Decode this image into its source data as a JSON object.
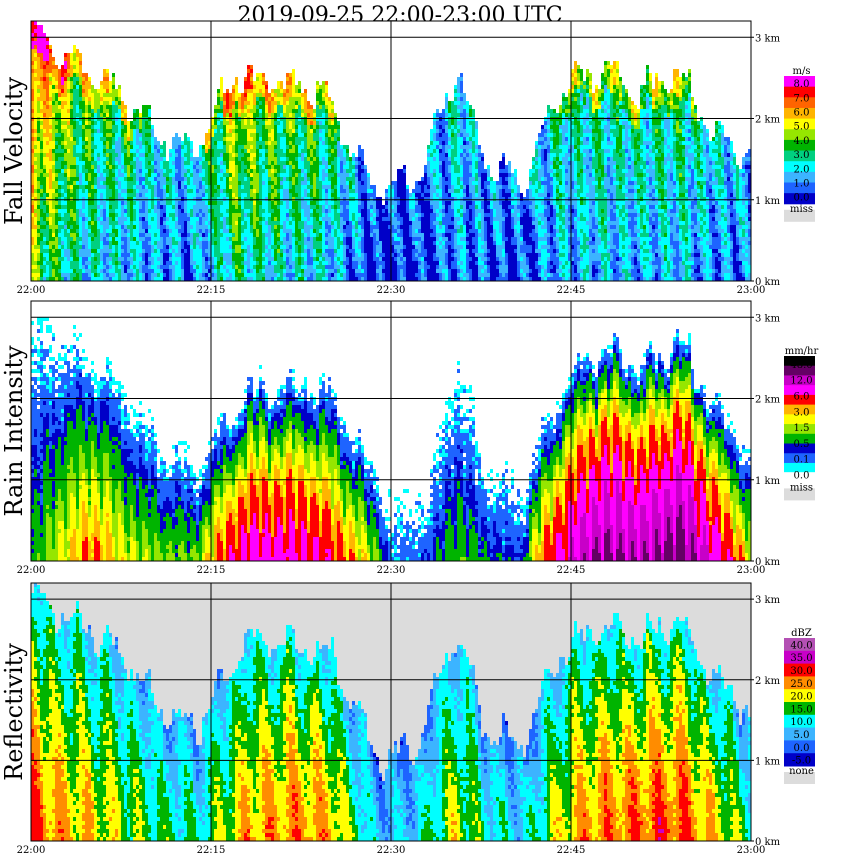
{
  "chart_data": [
    {
      "type": "heatmap",
      "title": "2019-09-25   22:00-23:00 UTC",
      "ylabel": "Fall Velocity",
      "xlabel": "",
      "x_ticks": [
        "22:00",
        "22:15",
        "22:30",
        "22:45",
        "23:00"
      ],
      "xlim": [
        0,
        60
      ],
      "y_ticks": [
        "0 km",
        "1 km",
        "2 km",
        "3 km"
      ],
      "ylim": [
        0,
        3.2
      ],
      "grid": true,
      "legend_unit": "m/s",
      "legend_labels": [
        "8.0",
        "7.0",
        "6.0",
        "5.0",
        "4.0",
        "3.0",
        "2.0",
        "1.0",
        "0.0",
        "miss"
      ],
      "levels": [
        0,
        1,
        2,
        3,
        4,
        5,
        6,
        7,
        8
      ],
      "colors": [
        "#0000c8",
        "#1e64ff",
        "#3cb4ff",
        "#00ffff",
        "#00d080",
        "#00b400",
        "#96e600",
        "#ffff00",
        "#ffb400",
        "#ff6400",
        "#ff0000",
        "#ff00ff"
      ],
      "miss_color": "#dcdcdc",
      "columns": [
        {
          "t": 0.0,
          "top": 3.2,
          "peak": 7.5
        },
        {
          "t": 2.0,
          "top": 2.8,
          "peak": 5.5
        },
        {
          "t": 4.5,
          "top": 2.6,
          "peak": 4.2
        },
        {
          "t": 7.5,
          "top": 2.3,
          "peak": 3.6
        },
        {
          "t": 10.5,
          "top": 1.8,
          "peak": 2.6
        },
        {
          "t": 13.5,
          "top": 1.6,
          "peak": 2.2
        },
        {
          "t": 17.0,
          "top": 2.5,
          "peak": 5.2
        },
        {
          "t": 21.0,
          "top": 2.4,
          "peak": 4.2
        },
        {
          "t": 24.5,
          "top": 2.3,
          "peak": 3.8
        },
        {
          "t": 28.5,
          "top": 1.1,
          "peak": 1.0
        },
        {
          "t": 32.0,
          "top": 1.2,
          "peak": 1.0
        },
        {
          "t": 35.5,
          "top": 2.6,
          "peak": 2.6
        },
        {
          "t": 38.0,
          "top": 1.4,
          "peak": 1.6
        },
        {
          "t": 41.0,
          "top": 1.2,
          "peak": 1.4
        },
        {
          "t": 44.0,
          "top": 2.3,
          "peak": 3.0
        },
        {
          "t": 47.5,
          "top": 2.6,
          "peak": 3.3
        },
        {
          "t": 50.5,
          "top": 2.3,
          "peak": 3.0
        },
        {
          "t": 54.0,
          "top": 2.5,
          "peak": 3.5
        },
        {
          "t": 57.0,
          "top": 1.8,
          "peak": 2.4
        },
        {
          "t": 60.0,
          "top": 1.5,
          "peak": 2.0
        }
      ]
    },
    {
      "type": "heatmap",
      "title": "",
      "ylabel": "Rain Intensity",
      "xlabel": "",
      "x_ticks": [
        "22:00",
        "22:15",
        "22:30",
        "22:45",
        "23:00"
      ],
      "xlim": [
        0,
        60
      ],
      "y_ticks": [
        "0 km",
        "1 km",
        "2 km",
        "3 km"
      ],
      "ylim": [
        0,
        3.2
      ],
      "grid": true,
      "legend_unit": "mm/hr",
      "legend_labels": [
        "48.0",
        "12.0",
        "6.0",
        "3.0",
        "1.5",
        "0.5",
        "0.1",
        "0.0",
        "miss"
      ],
      "levels": [
        0,
        0.1,
        0.5,
        1.5,
        3,
        6,
        12,
        48
      ],
      "colors": [
        "#ffffff",
        "#00ffff",
        "#1e64ff",
        "#0000c8",
        "#00b400",
        "#96e600",
        "#ffff00",
        "#ffb400",
        "#ff0000",
        "#ff00ff",
        "#c800c8",
        "#640064",
        "#000000"
      ],
      "miss_color": "#dcdcdc",
      "columns": [
        {
          "t": 0.0,
          "top": 3.2,
          "peak": 0.5
        },
        {
          "t": 2.5,
          "top": 2.8,
          "peak": 1.5
        },
        {
          "t": 5.0,
          "top": 2.6,
          "peak": 3.0
        },
        {
          "t": 8.0,
          "top": 2.2,
          "peak": 1.5
        },
        {
          "t": 11.0,
          "top": 1.5,
          "peak": 1.0
        },
        {
          "t": 14.0,
          "top": 1.3,
          "peak": 1.0
        },
        {
          "t": 18.0,
          "top": 2.2,
          "peak": 6.0
        },
        {
          "t": 22.0,
          "top": 2.3,
          "peak": 6.0
        },
        {
          "t": 25.0,
          "top": 2.2,
          "peak": 4.0
        },
        {
          "t": 30.0,
          "top": 0.8,
          "peak": 0.1
        },
        {
          "t": 33.0,
          "top": 0.9,
          "peak": 0.3
        },
        {
          "t": 35.5,
          "top": 2.6,
          "peak": 0.8
        },
        {
          "t": 38.0,
          "top": 1.2,
          "peak": 0.5
        },
        {
          "t": 41.0,
          "top": 1.0,
          "peak": 0.3
        },
        {
          "t": 44.5,
          "top": 2.3,
          "peak": 6.0
        },
        {
          "t": 47.5,
          "top": 2.7,
          "peak": 12.0
        },
        {
          "t": 51.0,
          "top": 2.5,
          "peak": 10.0
        },
        {
          "t": 54.0,
          "top": 2.8,
          "peak": 14.0
        },
        {
          "t": 57.0,
          "top": 2.0,
          "peak": 6.0
        },
        {
          "t": 60.0,
          "top": 1.4,
          "peak": 1.5
        }
      ]
    },
    {
      "type": "heatmap",
      "title": "",
      "ylabel": "Reflectivity",
      "xlabel": "",
      "x_ticks": [
        "22:00",
        "22:15",
        "22:30",
        "22:45",
        "23:00"
      ],
      "xlim": [
        0,
        60
      ],
      "y_ticks": [
        "0 km",
        "1 km",
        "2 km",
        "3 km"
      ],
      "ylim": [
        0,
        3.2
      ],
      "grid": true,
      "legend_unit": "dBZ",
      "legend_labels": [
        "40.0",
        "35.0",
        "30.0",
        "25.0",
        "20.0",
        "15.0",
        "10.0",
        "5.0",
        "0.0",
        "-5.0",
        "none"
      ],
      "levels": [
        -5,
        0,
        5,
        10,
        15,
        20,
        25,
        30,
        35,
        40
      ],
      "colors": [
        "#0000c8",
        "#1e64ff",
        "#3cb4ff",
        "#00ffff",
        "#00b400",
        "#ffff00",
        "#ff8c00",
        "#ff0000",
        "#c800c8",
        "#b450b4"
      ],
      "none_color": "#dcdcdc",
      "columns": [
        {
          "t": 0.0,
          "top": 3.0,
          "peak": 31
        },
        {
          "t": 2.5,
          "top": 2.8,
          "peak": 26
        },
        {
          "t": 5.0,
          "top": 2.6,
          "peak": 24
        },
        {
          "t": 8.0,
          "top": 2.2,
          "peak": 20
        },
        {
          "t": 11.0,
          "top": 1.6,
          "peak": 16
        },
        {
          "t": 14.0,
          "top": 1.4,
          "peak": 14
        },
        {
          "t": 18.0,
          "top": 2.5,
          "peak": 26
        },
        {
          "t": 22.0,
          "top": 2.4,
          "peak": 28
        },
        {
          "t": 25.0,
          "top": 2.3,
          "peak": 26
        },
        {
          "t": 29.0,
          "top": 1.0,
          "peak": 8
        },
        {
          "t": 32.0,
          "top": 1.1,
          "peak": 10
        },
        {
          "t": 35.5,
          "top": 2.6,
          "peak": 22
        },
        {
          "t": 38.0,
          "top": 1.3,
          "peak": 14
        },
        {
          "t": 41.0,
          "top": 1.2,
          "peak": 10
        },
        {
          "t": 44.5,
          "top": 2.4,
          "peak": 24
        },
        {
          "t": 47.5,
          "top": 2.6,
          "peak": 28
        },
        {
          "t": 51.0,
          "top": 2.5,
          "peak": 30
        },
        {
          "t": 54.0,
          "top": 2.7,
          "peak": 31
        },
        {
          "t": 57.0,
          "top": 2.0,
          "peak": 24
        },
        {
          "t": 60.0,
          "top": 1.5,
          "peak": 16
        }
      ]
    }
  ]
}
